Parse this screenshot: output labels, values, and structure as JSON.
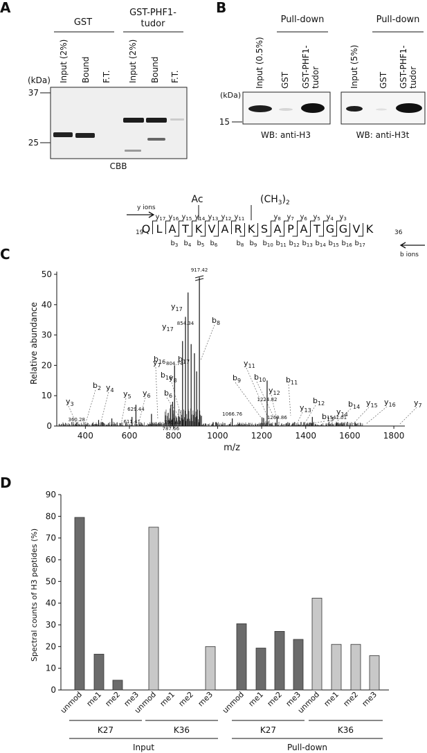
{
  "panel_a": {
    "letter": "A",
    "group_gst": "GST",
    "group_tudor_line1": "GST-PHF1-",
    "group_tudor_line2": "tudor",
    "lanes": [
      "Input (2%)",
      "Bound",
      "F.T.",
      "Input (2%)",
      "Bound",
      "F.T."
    ],
    "kda_label": "(kDa)",
    "marker_37": "37",
    "marker_25": "25",
    "stain": "CBB"
  },
  "panel_b": {
    "letter": "B",
    "pulldown": "Pull-down",
    "blots": [
      {
        "lanes": [
          "Input (0.5%)",
          "GST",
          "GST-PHF1-",
          "tudor"
        ],
        "wb": "WB: anti-H3"
      },
      {
        "lanes": [
          "Input (5%)",
          "GST",
          "GST-PHF1-",
          "tudor"
        ],
        "wb": "WB: anti-H3t"
      }
    ],
    "kda_label": "(kDa)",
    "marker_15": "15"
  },
  "peptide": {
    "start": "19",
    "end": "36",
    "residues": [
      "Q",
      "L",
      "A",
      "T",
      "K",
      "V",
      "A",
      "R",
      "K",
      "S",
      "A",
      "P",
      "A",
      "T",
      "G",
      "G",
      "V",
      "K"
    ],
    "highlight_color": "#e0242c",
    "ac": "Ac",
    "ch3": "(CH",
    "ch3_sub": "3",
    "ch3_close": ")",
    "ch3_sub2": "2",
    "y_ions_label": "y ions",
    "b_ions_label": "b ions",
    "y_top": [
      "17",
      "16",
      "15",
      "14",
      "13",
      "12",
      "11",
      "8",
      "7",
      "6",
      "5",
      "4",
      "3"
    ],
    "b_bottom": [
      "3",
      "4",
      "5",
      "6",
      "8",
      "9",
      "10",
      "11",
      "12",
      "13",
      "14",
      "15",
      "16",
      "17"
    ]
  },
  "panel_c": {
    "letter": "C",
    "ylabel": "Relative abundance",
    "xlabel": "m/z",
    "x_ticks": [
      "400",
      "600",
      "800",
      "1000",
      "1200",
      "1400",
      "1600",
      "1800"
    ],
    "y_ticks": [
      "0",
      "10",
      "20",
      "30",
      "40",
      "50"
    ],
    "peak_labels": [
      "917.42",
      "854.34",
      "804.74",
      "629.44",
      "611.41",
      "795.83",
      "787.66",
      "360.28",
      "1066.76",
      "1224.82",
      "1269.86",
      "1541.01"
    ],
    "ion_labels": [
      "y3",
      "b2",
      "y4",
      "y5",
      "y6",
      "y7",
      "b6",
      "y8",
      "b8",
      "b9",
      "b10",
      "y11",
      "b11",
      "y12",
      "y13",
      "b12",
      "b13",
      "y14",
      "b14",
      "y15",
      "y16",
      "y7"
    ]
  },
  "panel_d": {
    "letter": "D",
    "chart_data": {
      "type": "bar",
      "ylabel": "Spectral counts of H3 peptides (%)",
      "ylim": [
        0,
        90
      ],
      "y_ticks": [
        "0",
        "10",
        "20",
        "30",
        "40",
        "50",
        "60",
        "70",
        "80",
        "90"
      ],
      "categories": [
        "unmod",
        "me1",
        "me2",
        "me3",
        "unmod",
        "me1",
        "me2",
        "me3",
        "unmod",
        "me1",
        "me2",
        "me3",
        "unmod",
        "me1",
        "me2",
        "me3"
      ],
      "values": [
        79.5,
        16.5,
        4.5,
        0,
        75,
        0,
        0,
        20,
        30.5,
        19.3,
        27,
        23.3,
        42.3,
        21,
        21,
        15.8
      ],
      "colors": [
        "#6b6b6b",
        "#6b6b6b",
        "#6b6b6b",
        "#6b6b6b",
        "#c8c8c8",
        "#c8c8c8",
        "#c8c8c8",
        "#c8c8c8",
        "#6b6b6b",
        "#6b6b6b",
        "#6b6b6b",
        "#6b6b6b",
        "#c8c8c8",
        "#c8c8c8",
        "#c8c8c8",
        "#c8c8c8"
      ],
      "groups_level1": [
        "K27",
        "K36",
        "K27",
        "K36"
      ],
      "groups_level2": [
        "Input",
        "Pull-down"
      ]
    }
  }
}
